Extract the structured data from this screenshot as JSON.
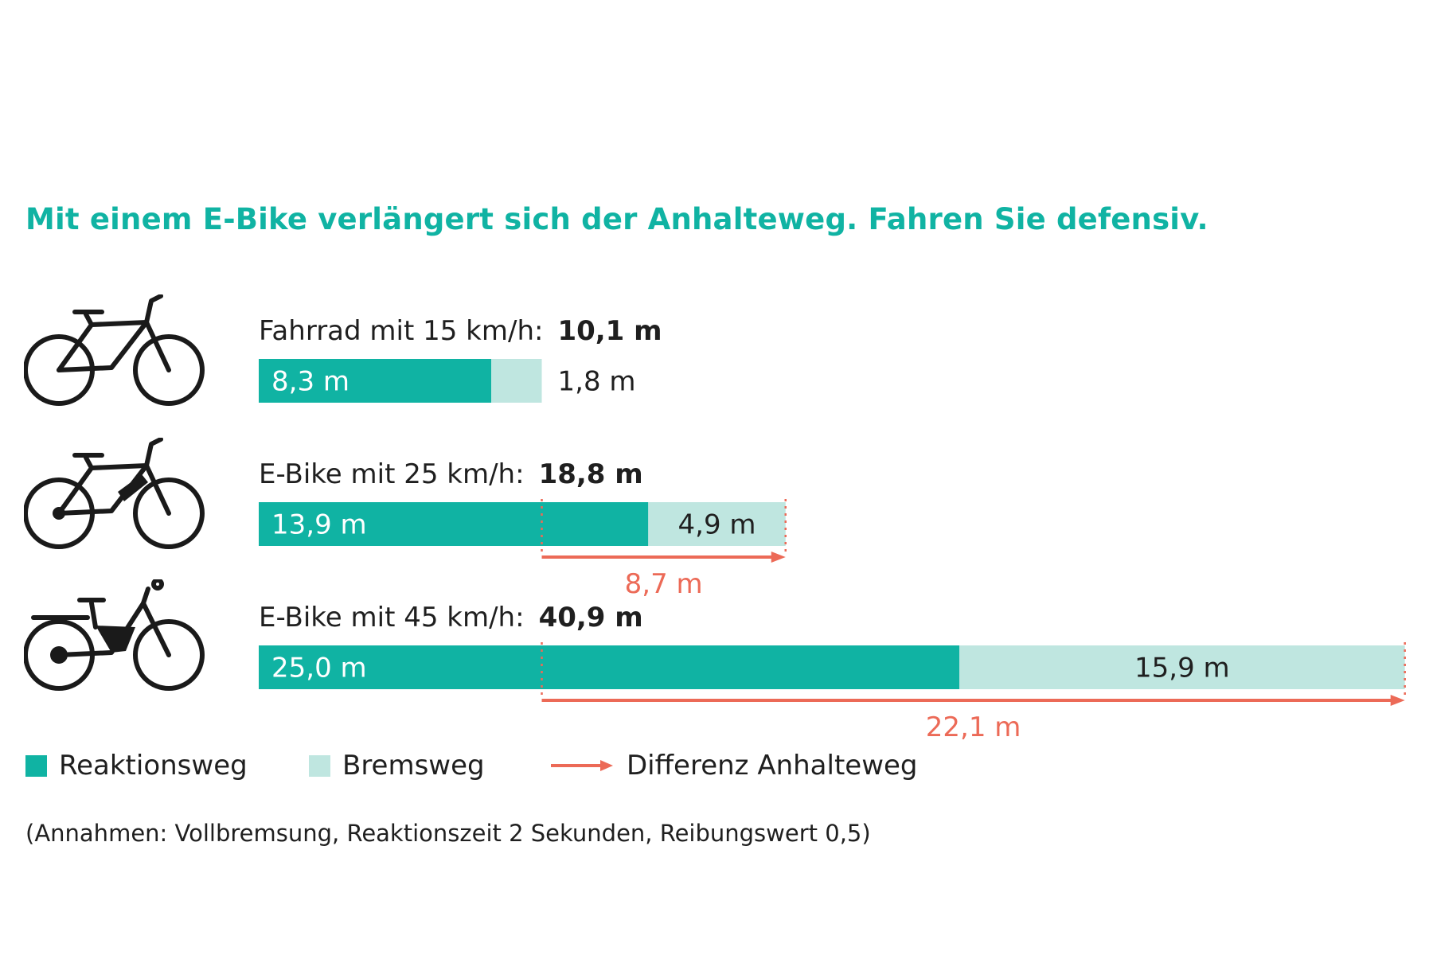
{
  "title": "Mit einem E-Bike verlängert sich der Anhalteweg. Fahren Sie defensiv.",
  "colors": {
    "reaction": "#10b3a3",
    "braking": "#bfe6e0",
    "difference": "#ec6a57",
    "text": "#1f1f1f",
    "title": "#10b3a3"
  },
  "chart_data": {
    "type": "bar",
    "orientation": "horizontal",
    "stacked": true,
    "categories": [
      "Fahrrad mit 15 km/h:",
      "E-Bike mit 25 km/h:",
      "E-Bike mit 45 km/h:"
    ],
    "totals": [
      "10,1 m",
      "18,8 m",
      "40,9 m"
    ],
    "series": [
      {
        "name": "Reaktionsweg",
        "values": [
          8.3,
          13.9,
          25.0
        ],
        "labels": [
          "8,3 m",
          "13,9 m",
          "25,0 m"
        ]
      },
      {
        "name": "Bremsweg",
        "values": [
          1.8,
          4.9,
          15.9
        ],
        "labels": [
          "1,8 m",
          "4,9 m",
          "15,9 m"
        ]
      }
    ],
    "differences": [
      {
        "row": 1,
        "value": 8.7,
        "label": "8,7 m"
      },
      {
        "row": 2,
        "value": 22.1,
        "label": "22,1 m"
      }
    ],
    "icons": [
      "bicycle-icon",
      "ebike-icon",
      "speed-pedelec-icon"
    ],
    "grid": false,
    "legend_position": "bottom-left"
  },
  "legend": {
    "reaction": "Reaktionsweg",
    "braking": "Bremsweg",
    "difference": "Differenz Anhalteweg"
  },
  "footnote": "(Annahmen: Vollbremsung, Reaktionszeit 2 Sekunden, Reibungswert 0,5)"
}
